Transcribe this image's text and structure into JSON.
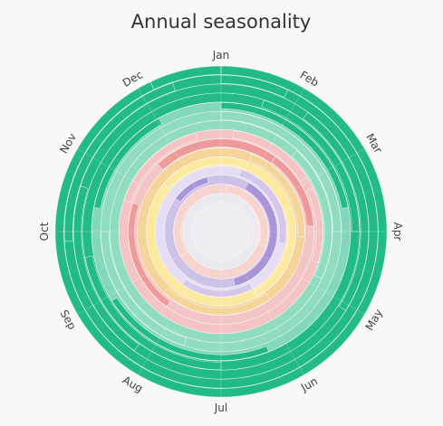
{
  "chart_data": {
    "type": "radial-seasonality",
    "title": "Annual seasonality",
    "months": [
      "Jan",
      "Feb",
      "Mar",
      "Apr",
      "May",
      "Jun",
      "Jul",
      "Aug",
      "Sep",
      "Oct",
      "Nov",
      "Dec"
    ],
    "band_colors": [
      "#22bb88",
      "#8fdcbf",
      "#f4c3c3",
      "#ef9a9a",
      "#f5d49a",
      "#fce9a0",
      "#d5c6ec",
      "#a994d9",
      "#f7d3cd",
      "#e9e9ef"
    ],
    "rings": [
      {
        "band": 0,
        "base": 1,
        "arcs": [
          [
            0.0,
            0.93,
            1.0
          ],
          [
            0.93,
            1.0,
            0.98
          ]
        ]
      },
      {
        "band": 0,
        "base": 1,
        "arcs": [
          [
            0.0,
            0.07,
            0.95
          ],
          [
            0.74,
            0.95,
            0.96
          ]
        ]
      },
      {
        "band": 0,
        "base": 1,
        "arcs": [
          [
            0.1,
            0.34,
            0.86
          ],
          [
            0.6,
            0.8,
            0.86
          ]
        ]
      },
      {
        "band": 0,
        "base": 1,
        "arcs": [
          [
            0.05,
            0.25,
            0.79
          ],
          [
            0.5,
            0.72,
            0.8
          ]
        ]
      },
      {
        "band": 0,
        "base": 0,
        "arcs": [
          [
            0.0,
            0.22,
            0.58
          ],
          [
            0.44,
            0.66,
            0.5
          ],
          [
            0.78,
            0.92,
            0.63
          ]
        ]
      },
      {
        "band": 1,
        "base": 1,
        "arcs": [
          [
            0.0,
            0.25,
            0.93
          ],
          [
            0.55,
            0.75,
            0.9
          ]
        ]
      },
      {
        "band": 1,
        "base": 1,
        "arcs": [
          [
            0.12,
            0.32,
            0.8
          ]
        ]
      },
      {
        "band": 2,
        "base": 1,
        "arcs": [
          [
            0.02,
            0.16,
            0.85
          ],
          [
            0.18,
            0.3,
            0.66
          ],
          [
            0.8,
            0.96,
            0.7
          ]
        ]
      },
      {
        "band": 3,
        "base": 0,
        "arcs": [
          [
            0.88,
            0.1,
            0.9
          ],
          [
            0.1,
            0.24,
            0.72
          ],
          [
            0.6,
            0.8,
            0.6
          ]
        ]
      },
      {
        "band": 4,
        "base": 1,
        "arcs": [
          [
            0.06,
            0.26,
            0.72
          ],
          [
            0.4,
            0.62,
            0.68
          ]
        ]
      },
      {
        "band": 5,
        "base": 1,
        "arcs": [
          [
            0.86,
            0.06,
            0.82
          ],
          [
            0.2,
            0.42,
            0.66
          ]
        ]
      },
      {
        "band": 6,
        "base": 0,
        "arcs": [
          [
            0.05,
            0.28,
            0.74
          ],
          [
            0.42,
            0.6,
            0.6
          ]
        ]
      },
      {
        "band": 7,
        "base": 0,
        "arcs": [
          [
            0.08,
            0.46,
            0.85
          ],
          [
            0.85,
            0.96,
            0.55
          ]
        ]
      },
      {
        "band": 8,
        "base": 1,
        "arcs": [
          [
            0.02,
            0.3,
            0.82
          ],
          [
            0.66,
            0.86,
            0.7
          ]
        ]
      },
      {
        "band": 9,
        "base": 1,
        "arcs": [
          [
            0.1,
            0.34,
            0.55
          ]
        ]
      }
    ]
  }
}
